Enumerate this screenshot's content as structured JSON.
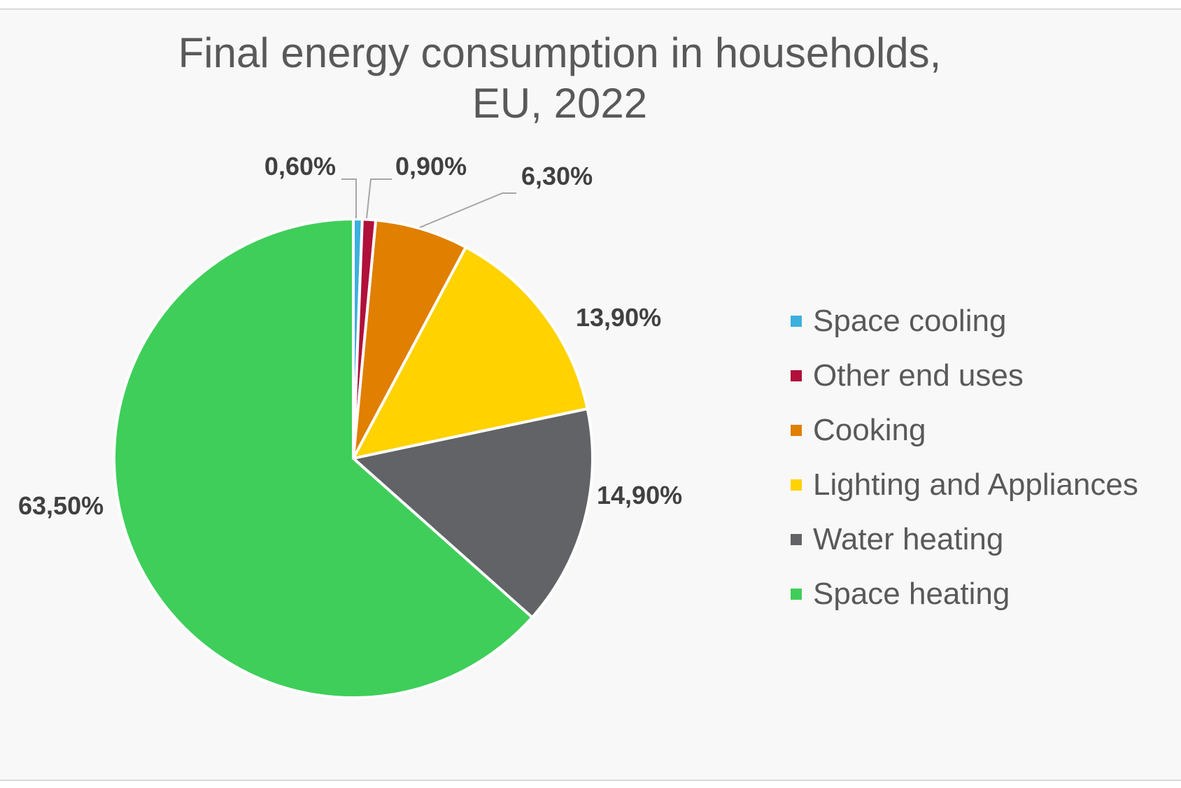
{
  "chart_data": {
    "type": "pie",
    "title": [
      "Final energy consumption in households,",
      "EU, 2022"
    ],
    "slices": [
      {
        "name": "Space cooling",
        "value": 0.6,
        "label": "0,60%",
        "color": "#3bb0de"
      },
      {
        "name": "Other end uses",
        "value": 0.9,
        "label": "0,90%",
        "color": "#b0103a"
      },
      {
        "name": "Cooking",
        "value": 6.3,
        "label": "6,30%",
        "color": "#e07f00"
      },
      {
        "name": "Lighting and Appliances",
        "value": 13.9,
        "label": "13,90%",
        "color": "#ffd200"
      },
      {
        "name": "Water heating",
        "value": 14.9,
        "label": "14,90%",
        "color": "#626366"
      },
      {
        "name": "Space heating",
        "value": 63.5,
        "label": "63,50%",
        "color": "#3fce5a"
      }
    ],
    "legend": {
      "position": "right"
    },
    "unit": "%"
  }
}
